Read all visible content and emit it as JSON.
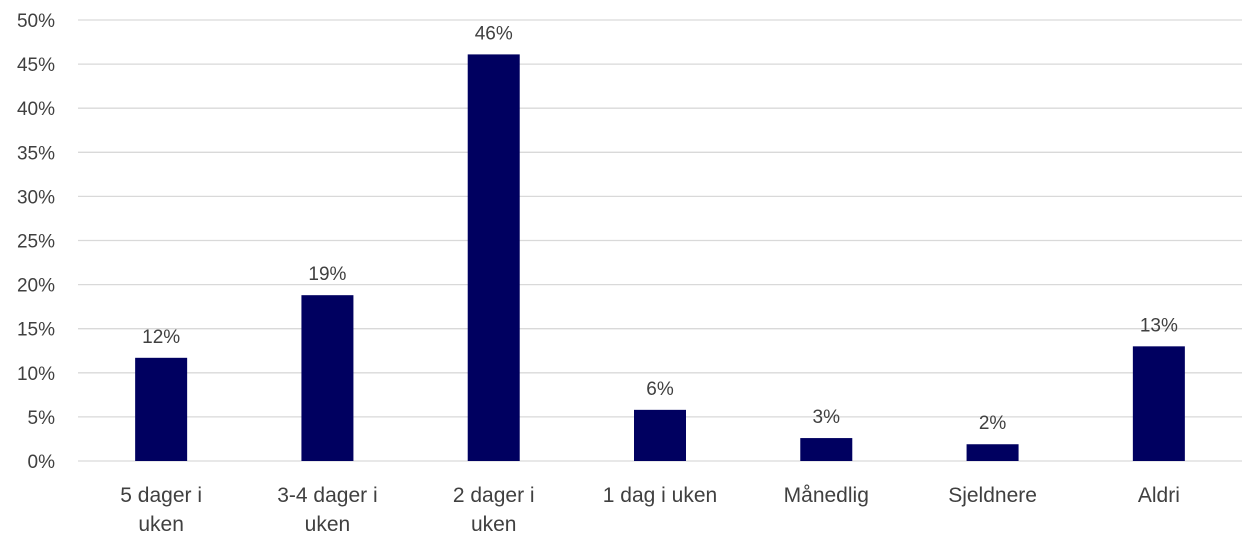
{
  "chart_data": {
    "type": "bar",
    "categories": [
      [
        "5 dager i",
        "uken"
      ],
      [
        "3-4 dager i",
        "uken"
      ],
      [
        "2 dager i",
        "uken"
      ],
      [
        "1 dag i uken"
      ],
      [
        "Månedlig"
      ],
      [
        "Sjeldnere"
      ],
      [
        "Aldri"
      ]
    ],
    "values": [
      0.117,
      0.188,
      0.461,
      0.058,
      0.026,
      0.019,
      0.13
    ],
    "data_labels": [
      "12%",
      "19%",
      "46%",
      "6%",
      "3%",
      "2%",
      "13%"
    ],
    "y_ticks": [
      "0%",
      "5%",
      "10%",
      "15%",
      "20%",
      "25%",
      "30%",
      "35%",
      "40%",
      "45%",
      "50%"
    ],
    "ylim": [
      0,
      0.5
    ],
    "grid": true,
    "bar_color": "#000060",
    "gridline_color": "#d9d9d9",
    "text_color": "#404040"
  }
}
